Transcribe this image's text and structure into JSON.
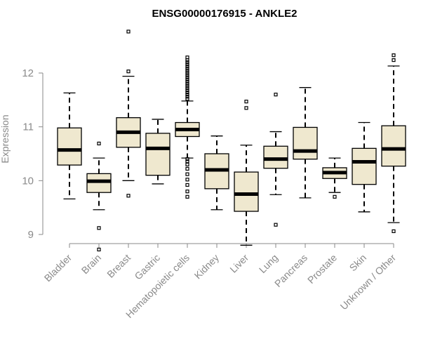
{
  "chart_data": {
    "type": "boxplot",
    "title": "ENSG00000176915 - ANKLE2",
    "xlabel": "",
    "ylabel": "Expression",
    "ylim": [
      8.6,
      12.9
    ],
    "yticks": [
      9,
      10,
      11,
      12
    ],
    "grid": false,
    "box_color": "#EFE8CF",
    "categories": [
      "Bladder",
      "Brain",
      "Breast",
      "Gastric",
      "Hematopoietic cells",
      "Kidney",
      "Liver",
      "Lung",
      "Pancreas",
      "Prostate",
      "Skin",
      "Unknown / Other"
    ],
    "boxes": [
      {
        "name": "Bladder",
        "whislo": 9.66,
        "q1": 10.29,
        "med": 10.57,
        "q3": 10.98,
        "whishi": 11.63,
        "fliers": []
      },
      {
        "name": "Brain",
        "whislo": 9.46,
        "q1": 9.78,
        "med": 9.99,
        "q3": 10.13,
        "whishi": 10.42,
        "fliers": [
          9.12,
          8.72,
          10.69
        ]
      },
      {
        "name": "Breast",
        "whislo": 10.0,
        "q1": 10.62,
        "med": 10.9,
        "q3": 11.17,
        "whishi": 11.94,
        "fliers": [
          9.72,
          12.03,
          12.77
        ]
      },
      {
        "name": "Gastric",
        "whislo": 9.94,
        "q1": 10.1,
        "med": 10.6,
        "q3": 10.88,
        "whishi": 11.14,
        "fliers": []
      },
      {
        "name": "Hematopoietic cells",
        "whislo": 10.42,
        "q1": 10.82,
        "med": 10.95,
        "q3": 11.08,
        "whishi": 11.48,
        "fliers": [
          9.7,
          9.8,
          9.92,
          10.02,
          10.12,
          10.22,
          10.3,
          10.36,
          10.4,
          11.52,
          11.56,
          11.6,
          11.64,
          11.68,
          11.72,
          11.76,
          11.8,
          11.84,
          11.88,
          11.92,
          11.96,
          12.0,
          12.04,
          12.08,
          12.12,
          12.16,
          12.2,
          12.24,
          12.29
        ]
      },
      {
        "name": "Kidney",
        "whislo": 9.46,
        "q1": 9.85,
        "med": 10.2,
        "q3": 10.5,
        "whishi": 10.83,
        "fliers": []
      },
      {
        "name": "Liver",
        "whislo": 8.8,
        "q1": 9.43,
        "med": 9.75,
        "q3": 10.16,
        "whishi": 10.66,
        "fliers": [
          11.35,
          11.47
        ]
      },
      {
        "name": "Lung",
        "whislo": 9.74,
        "q1": 10.23,
        "med": 10.4,
        "q3": 10.64,
        "whishi": 10.91,
        "fliers": [
          9.18,
          11.6
        ]
      },
      {
        "name": "Pancreas",
        "whislo": 9.68,
        "q1": 10.4,
        "med": 10.55,
        "q3": 10.99,
        "whishi": 11.73,
        "fliers": []
      },
      {
        "name": "Prostate",
        "whislo": 9.78,
        "q1": 10.04,
        "med": 10.15,
        "q3": 10.24,
        "whishi": 10.42,
        "fliers": [
          9.7
        ]
      },
      {
        "name": "Skin",
        "whislo": 9.42,
        "q1": 9.93,
        "med": 10.35,
        "q3": 10.6,
        "whishi": 11.08,
        "fliers": []
      },
      {
        "name": "Unknown / Other",
        "whislo": 9.22,
        "q1": 10.27,
        "med": 10.59,
        "q3": 11.02,
        "whishi": 12.13,
        "fliers": [
          9.06,
          12.24,
          12.33
        ]
      }
    ]
  }
}
